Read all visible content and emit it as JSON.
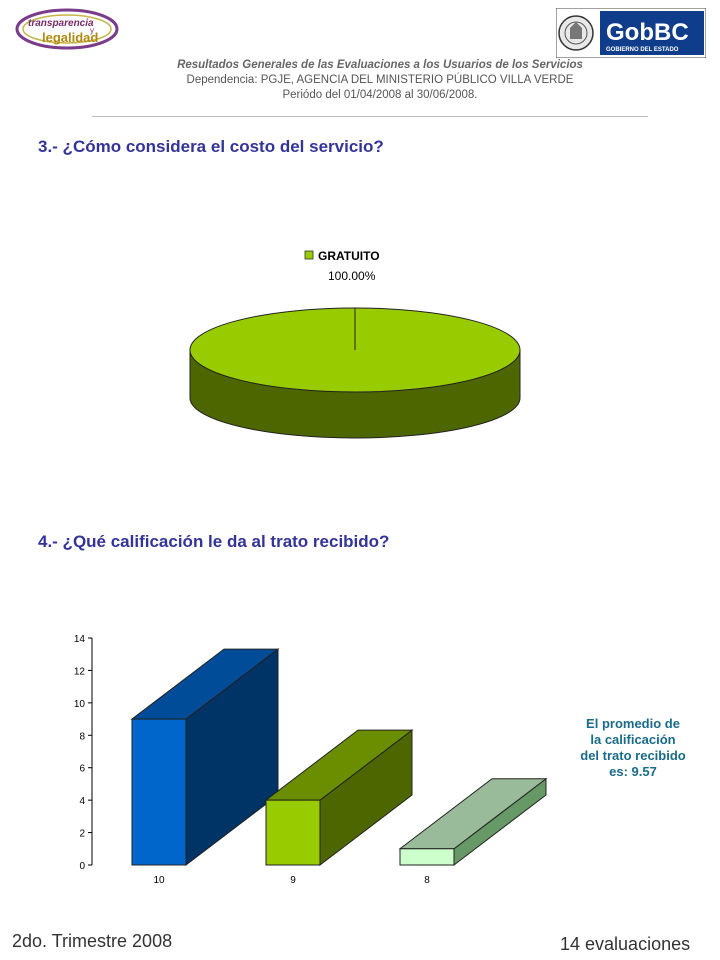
{
  "logos": {
    "left": {
      "line1": "transparencia",
      "line2": "y",
      "line3": "legalidad"
    },
    "right": {
      "name": "GobBC",
      "tagline": "GOBIERNO DEL ESTADO"
    }
  },
  "header": {
    "line1": "Resultados  Generales  de las Evaluaciones a los Usuarios  de los Servicios",
    "line2": "Dependencia: PGJE, AGENCIA  DEL MINISTERIO  PÚBLICO  VILLA VERDE",
    "line3": "Periódo del 01/04/2008  al 30/06/2008."
  },
  "questions": {
    "q3": "3.- ¿Cómo considera el costo del servicio?",
    "q4": "4.- ¿Qué calificación le da al trato recibido?"
  },
  "chart_data": [
    {
      "type": "pie",
      "title": "",
      "series": [
        {
          "name": "GRATUITO",
          "values": [
            100.0
          ]
        }
      ],
      "categories": [
        "GRATUITO"
      ],
      "labels": [
        "100.00%"
      ],
      "legend": "top",
      "colors": [
        "#99cc00"
      ]
    },
    {
      "type": "bar",
      "title": "",
      "categories": [
        "10",
        "9",
        "8"
      ],
      "values": [
        9,
        4,
        1
      ],
      "ylim": [
        0,
        14
      ],
      "yticks": [
        "0",
        "2",
        "4",
        "6",
        "8",
        "10",
        "12",
        "14"
      ],
      "colors": [
        "#0066cc",
        "#99cc00",
        "#ccffcc"
      ],
      "annotation": [
        "El promedio de",
        "la calificación",
        "del trato recibido",
        "es: 9.57"
      ]
    }
  ],
  "footer": {
    "left": "2do. Trimestre 2008",
    "right": "14 evaluaciones"
  }
}
